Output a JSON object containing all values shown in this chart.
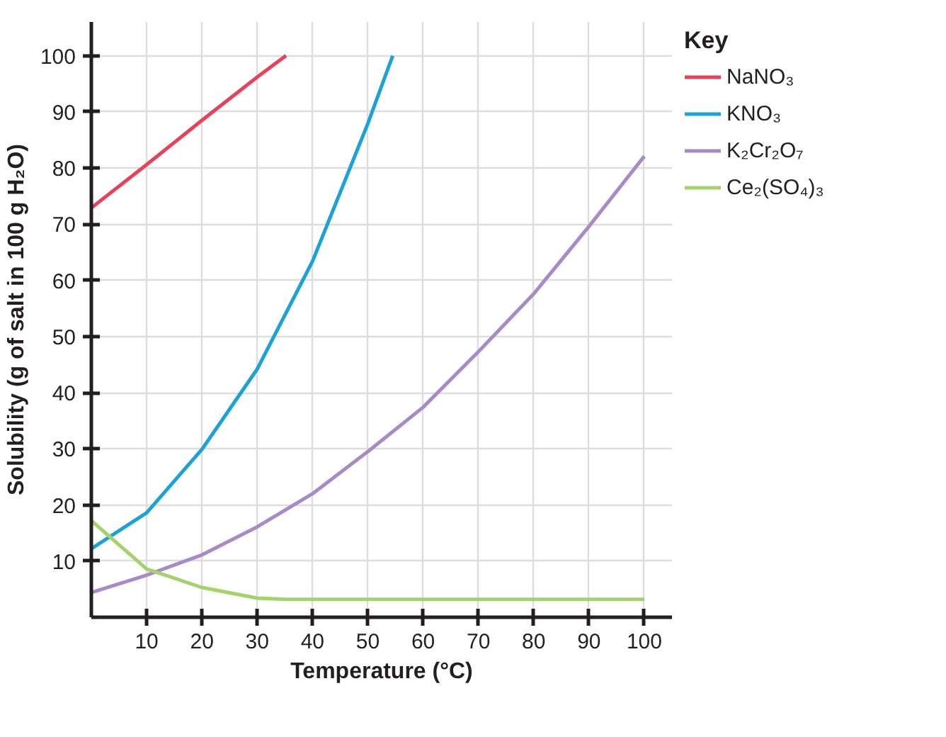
{
  "chart_data": {
    "type": "line",
    "xlabel": "Temperature (°C)",
    "ylabel": "Solubility (g of salt in 100 g H₂O)",
    "legend_title": "Key",
    "xlim": [
      0,
      105
    ],
    "ylim": [
      0,
      106
    ],
    "xticks": [
      10,
      20,
      30,
      40,
      50,
      60,
      70,
      80,
      90,
      100
    ],
    "yticks": [
      10,
      20,
      30,
      40,
      50,
      60,
      70,
      80,
      90,
      100
    ],
    "grid": true,
    "legend": "right",
    "marker": "none",
    "line_style": "solid",
    "series": [
      {
        "name": "NaNO₃",
        "color": "#e8425a",
        "x": [
          0,
          10,
          20,
          30,
          35.2
        ],
        "values": [
          72.9,
          80.6,
          88.5,
          96.2,
          100
        ]
      },
      {
        "name": "KNO₃",
        "color": "#1ba3d8",
        "x": [
          0,
          10,
          20,
          30,
          40,
          50,
          54.5
        ],
        "values": [
          12.2,
          18.6,
          29.9,
          44.2,
          63.4,
          87.9,
          100
        ]
      },
      {
        "name": "K₂Cr₂O₇",
        "color": "#a98ac8",
        "x": [
          0,
          10,
          20,
          30,
          40,
          50,
          60,
          70,
          80,
          90,
          100
        ],
        "values": [
          4.4,
          7.5,
          11.1,
          16.1,
          22.0,
          29.5,
          37.4,
          47.3,
          57.6,
          69.6,
          82.1
        ]
      },
      {
        "name": "Ce₂(SO₄)₃",
        "color": "#a3d36a",
        "x": [
          0,
          10,
          20,
          30,
          35,
          40,
          50,
          60,
          70,
          80,
          90,
          100
        ],
        "values": [
          17.2,
          8.6,
          5.3,
          3.4,
          3.2,
          3.2,
          3.2,
          3.2,
          3.2,
          3.2,
          3.2,
          3.2
        ]
      }
    ]
  }
}
